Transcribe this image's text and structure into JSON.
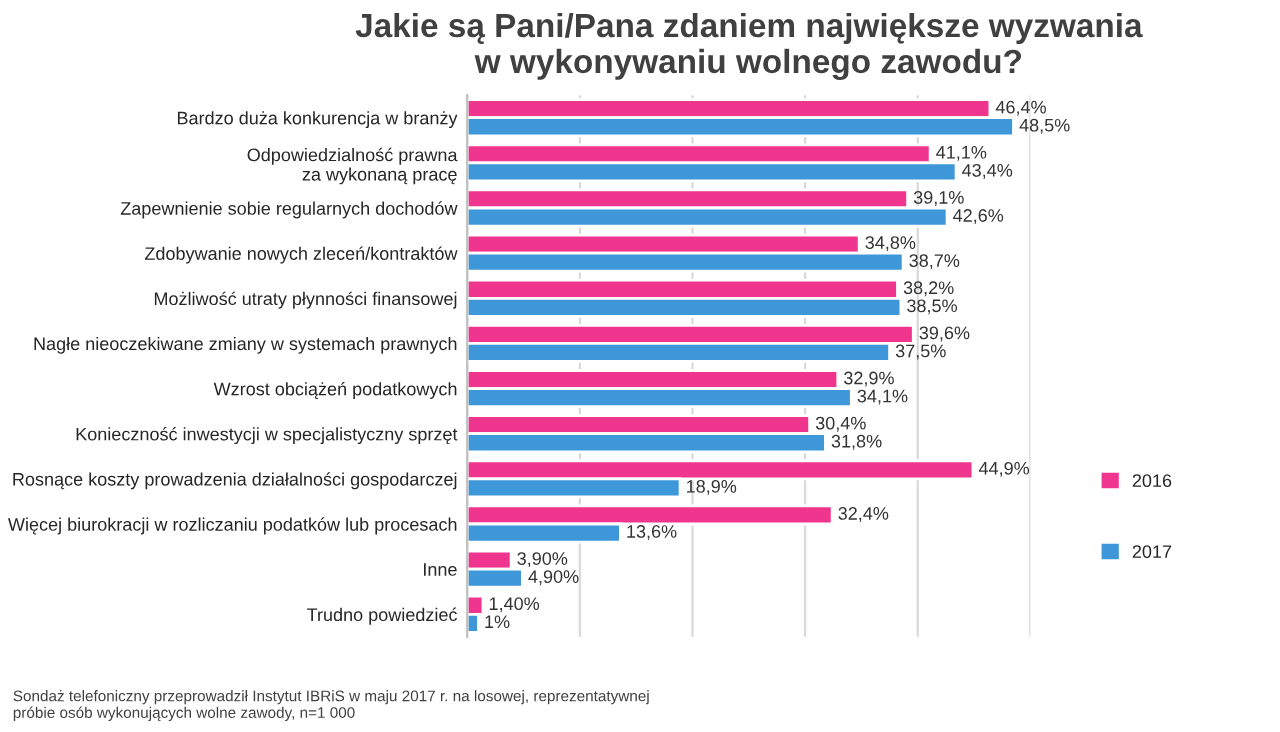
{
  "chart_data": {
    "type": "bar",
    "orientation": "horizontal",
    "title": "Jakie są Pani/Pana zdaniem największe wyzwania\nw wykonywaniu wolnego zawodu?",
    "categories": [
      "Bardzo duża konkurencja w branży",
      "Odpowiedzialność prawna\nza wykonaną pracę",
      "Zapewnienie sobie regularnych dochodów",
      "Zdobywanie nowych zleceń/kontraktów",
      "Możliwość utraty płynności finansowej",
      "Nagłe nieoczekiwane zmiany w systemach prawnych",
      "Wzrost obciążeń podatkowych",
      "Konieczność inwestycji w specjalistyczny sprzęt",
      "Rosnące koszty prowadzenia działalności gospodarczej",
      "Więcej biurokracji w rozliczaniu podatków lub procesach",
      "Inne",
      "Trudno powiedzieć"
    ],
    "series": [
      {
        "name": "2016",
        "color": "#f0358f",
        "values": [
          46.4,
          41.1,
          39.1,
          34.8,
          38.2,
          39.6,
          32.9,
          30.4,
          44.9,
          32.4,
          3.9,
          1.4
        ],
        "value_labels": [
          "46,4%",
          "41,1%",
          "39,1%",
          "34,8%",
          "38,2%",
          "39,6%",
          "32,9%",
          "30,4%",
          "44,9%",
          "32,4%",
          "3,90%",
          "1,40%"
        ]
      },
      {
        "name": "2017",
        "color": "#3d97d8",
        "values": [
          48.5,
          43.4,
          42.6,
          38.7,
          38.5,
          37.5,
          34.1,
          31.8,
          18.9,
          13.6,
          4.9,
          1.0
        ],
        "value_labels": [
          "48,5%",
          "43,4%",
          "42,6%",
          "38,7%",
          "38,5%",
          "37,5%",
          "34,1%",
          "31,8%",
          "18,9%",
          "13,6%",
          "4,90%",
          "1%"
        ]
      }
    ],
    "xlim": [
      0,
      50
    ],
    "xticks": [
      {
        "value": 0,
        "label": null
      },
      {
        "value": 10,
        "label": null
      },
      {
        "value": 20,
        "label": null
      },
      {
        "value": 30,
        "label": null
      },
      {
        "value": 40,
        "label": null
      },
      {
        "value": 50,
        "label": null
      }
    ],
    "tick_labels": "y",
    "grid": "x",
    "legend": "right",
    "annotations": [
      "Sondaż telefoniczny przeprowadził Instytut IBRiS w maju 2017 r. na losowej, reprezentatywnej\npróbie osób wykonujących wolne zawody, n=1 000"
    ]
  }
}
